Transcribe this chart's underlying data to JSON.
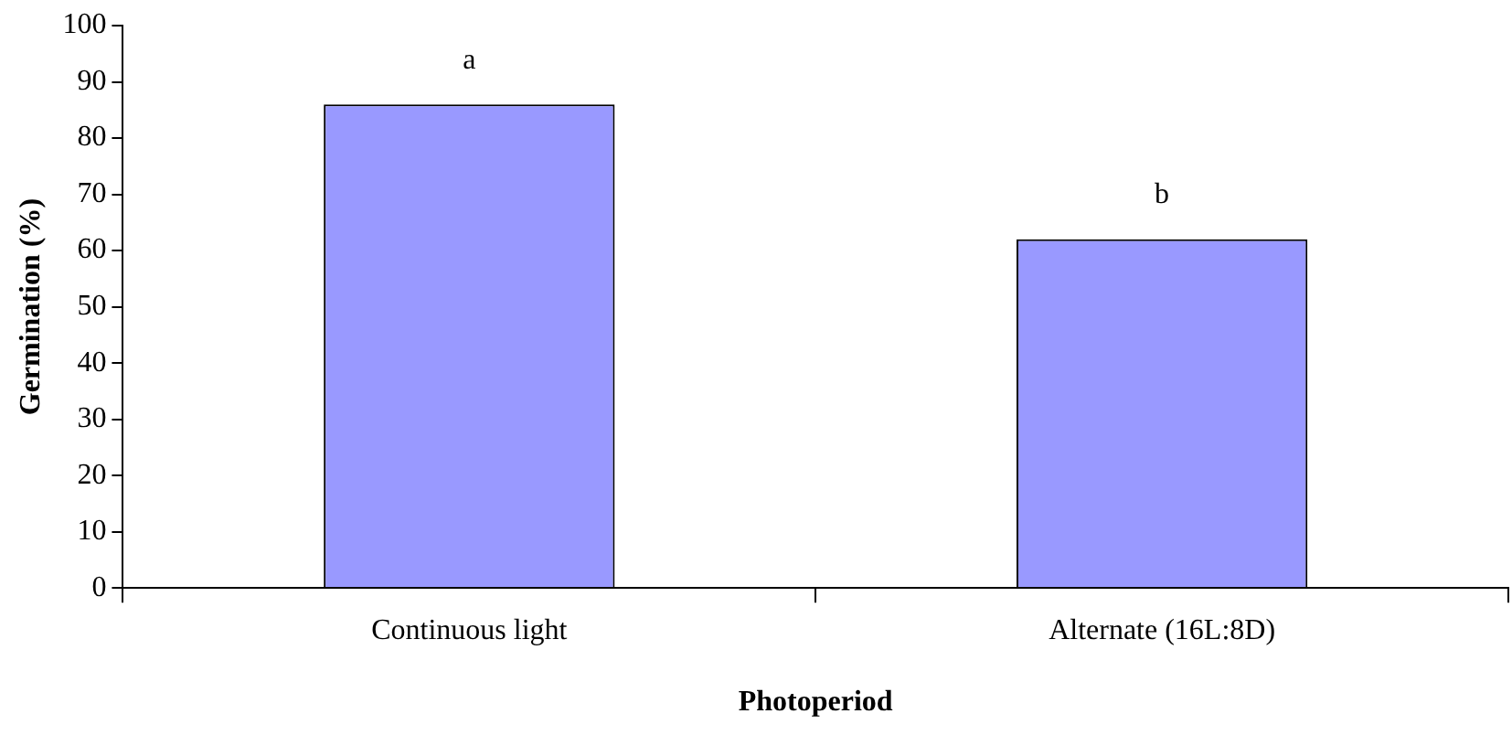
{
  "chart_data": {
    "type": "bar",
    "xlabel": "Photoperiod",
    "ylabel": "Germination (%)",
    "categories": [
      "Continuous light",
      "Alternate (16L:8D)"
    ],
    "values": [
      86,
      62
    ],
    "color": "#9999ff",
    "ylim": [
      0,
      100
    ],
    "yticks": [
      0,
      10,
      20,
      30,
      40,
      50,
      60,
      70,
      80,
      90,
      100
    ],
    "grid": false,
    "legend": false,
    "annotations": [
      {
        "text": "a",
        "x": "Continuous light",
        "y": 86
      },
      {
        "text": "b",
        "x": "Alternate (16L:8D)",
        "y": 62
      }
    ]
  }
}
